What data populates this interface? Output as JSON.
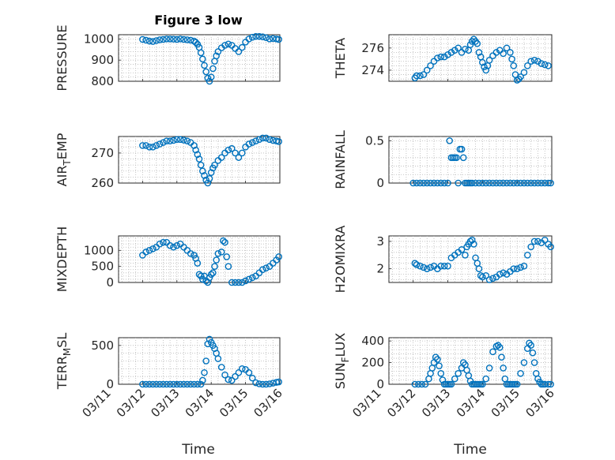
{
  "title": "Figure 3 low",
  "marker_color": "#0072BD",
  "chart_data": [
    {
      "type": "scatter",
      "ylabel": "PRESSURE",
      "ylim": [
        800,
        1020
      ],
      "yticks": [
        800,
        900,
        1000
      ],
      "ytick_labels": [
        "800",
        "900",
        "1000"
      ],
      "xlim": [
        11.3,
        16.0
      ],
      "xticks": [
        11,
        12,
        13,
        14,
        15,
        16
      ],
      "x": [
        12.0,
        12.1,
        12.2,
        12.3,
        12.4,
        12.5,
        12.6,
        12.7,
        12.8,
        12.9,
        13.0,
        13.1,
        13.2,
        13.3,
        13.4,
        13.5,
        13.55,
        13.6,
        13.65,
        13.7,
        13.75,
        13.8,
        13.85,
        13.9,
        13.95,
        14.0,
        14.05,
        14.1,
        14.15,
        14.2,
        14.3,
        14.4,
        14.5,
        14.6,
        14.7,
        14.8,
        14.9,
        15.0,
        15.1,
        15.2,
        15.3,
        15.4,
        15.5,
        15.6,
        15.7,
        15.8,
        15.9,
        15.97
      ],
      "y": [
        998,
        994,
        990,
        988,
        992,
        996,
        998,
        1000,
        1000,
        999,
        998,
        1000,
        998,
        996,
        994,
        990,
        984,
        975,
        960,
        935,
        905,
        875,
        845,
        815,
        800,
        820,
        860,
        895,
        920,
        940,
        958,
        970,
        976,
        970,
        955,
        940,
        960,
        985,
        1000,
        1008,
        1012,
        1012,
        1010,
        1006,
        1000,
        1002,
        1000,
        998
      ]
    },
    {
      "type": "scatter",
      "ylabel": "THETA",
      "ylim": [
        273,
        277.2
      ],
      "yticks": [
        274,
        276
      ],
      "ytick_labels": [
        "274",
        "276"
      ],
      "xlim": [
        11.3,
        16.0
      ],
      "xticks": [
        11,
        12,
        13,
        14,
        15,
        16
      ],
      "x": [
        12.05,
        12.1,
        12.2,
        12.3,
        12.4,
        12.5,
        12.6,
        12.7,
        12.8,
        12.9,
        13.0,
        13.1,
        13.2,
        13.3,
        13.4,
        13.5,
        13.6,
        13.65,
        13.7,
        13.75,
        13.8,
        13.85,
        13.9,
        13.95,
        14.0,
        14.05,
        14.1,
        14.15,
        14.2,
        14.3,
        14.4,
        14.5,
        14.6,
        14.7,
        14.8,
        14.85,
        14.9,
        14.95,
        15.0,
        15.05,
        15.1,
        15.2,
        15.3,
        15.4,
        15.5,
        15.6,
        15.7,
        15.8,
        15.9
      ],
      "y": [
        273.3,
        273.5,
        273.5,
        273.6,
        274.0,
        274.4,
        274.8,
        275.1,
        275.2,
        275.2,
        275.4,
        275.6,
        275.8,
        276.0,
        275.6,
        275.9,
        275.8,
        276.3,
        276.6,
        276.8,
        276.6,
        276.4,
        275.6,
        275.2,
        274.7,
        274.3,
        274.0,
        274.4,
        274.9,
        275.3,
        275.6,
        275.8,
        275.5,
        276.0,
        275.6,
        275.0,
        274.4,
        273.6,
        273.1,
        273.2,
        273.4,
        273.8,
        274.4,
        274.8,
        274.9,
        274.8,
        274.6,
        274.5,
        274.4
      ]
    },
    {
      "type": "scatter",
      "ylabel": "AIR_TEMP",
      "ylim": [
        260,
        275.5
      ],
      "yticks": [
        260,
        270
      ],
      "ytick_labels": [
        "260",
        "270"
      ],
      "xlim": [
        11.3,
        16.0
      ],
      "xticks": [
        11,
        12,
        13,
        14,
        15,
        16
      ],
      "x": [
        12.0,
        12.1,
        12.2,
        12.3,
        12.4,
        12.5,
        12.6,
        12.7,
        12.8,
        12.9,
        13.0,
        13.1,
        13.2,
        13.3,
        13.4,
        13.5,
        13.55,
        13.6,
        13.65,
        13.7,
        13.75,
        13.8,
        13.85,
        13.9,
        13.95,
        14.0,
        14.05,
        14.1,
        14.2,
        14.3,
        14.4,
        14.5,
        14.6,
        14.7,
        14.8,
        14.9,
        15.0,
        15.1,
        15.2,
        15.3,
        15.4,
        15.5,
        15.6,
        15.7,
        15.8,
        15.9,
        15.97
      ],
      "y": [
        272.5,
        272.5,
        272.0,
        272.0,
        272.5,
        273.0,
        273.5,
        274.0,
        274.0,
        274.2,
        274.5,
        274.5,
        274.3,
        274.0,
        273.5,
        272.5,
        271.0,
        269.5,
        268.0,
        266.0,
        264.0,
        262.5,
        261.0,
        260.0,
        261.5,
        263.5,
        265.0,
        266.0,
        267.5,
        268.5,
        270.0,
        271.0,
        271.5,
        270.0,
        268.5,
        270.0,
        272.0,
        273.0,
        273.5,
        274.0,
        274.5,
        275.0,
        275.0,
        274.5,
        274.2,
        274.0,
        273.8
      ]
    },
    {
      "type": "scatter",
      "ylabel": "RAINFALL",
      "ylim": [
        0,
        0.55
      ],
      "yticks": [
        0,
        0.5
      ],
      "ytick_labels": [
        "0",
        "0.5"
      ],
      "xlim": [
        11.3,
        16.0
      ],
      "xticks": [
        11,
        12,
        13,
        14,
        15,
        16
      ],
      "x": [
        12.0,
        12.1,
        12.2,
        12.3,
        12.4,
        12.5,
        12.6,
        12.7,
        12.8,
        12.9,
        13.0,
        13.05,
        13.1,
        13.15,
        13.2,
        13.25,
        13.3,
        13.35,
        13.4,
        13.45,
        13.5,
        13.55,
        13.6,
        13.65,
        13.7,
        13.8,
        13.9,
        14.0,
        14.1,
        14.2,
        14.3,
        14.4,
        14.5,
        14.6,
        14.7,
        14.8,
        14.9,
        15.0,
        15.1,
        15.2,
        15.3,
        15.4,
        15.5,
        15.6,
        15.7,
        15.8,
        15.9,
        15.97
      ],
      "y": [
        0,
        0,
        0,
        0,
        0,
        0,
        0,
        0,
        0,
        0,
        0,
        0.5,
        0.3,
        0.3,
        0.3,
        0.3,
        0,
        0.4,
        0.4,
        0.3,
        0,
        0,
        0,
        0,
        0,
        0,
        0,
        0,
        0,
        0,
        0,
        0,
        0,
        0,
        0,
        0,
        0,
        0,
        0,
        0,
        0,
        0,
        0,
        0,
        0,
        0,
        0,
        0
      ]
    },
    {
      "type": "scatter",
      "ylabel": "MIXDEPTH",
      "ylim": [
        0,
        1450
      ],
      "yticks": [
        0,
        500,
        1000
      ],
      "ytick_labels": [
        "0",
        "500",
        "1000"
      ],
      "xlim": [
        11.3,
        16.0
      ],
      "xticks": [
        11,
        12,
        13,
        14,
        15,
        16
      ],
      "x": [
        12.0,
        12.1,
        12.2,
        12.3,
        12.4,
        12.5,
        12.6,
        12.7,
        12.8,
        12.9,
        13.0,
        13.1,
        13.2,
        13.3,
        13.4,
        13.5,
        13.55,
        13.6,
        13.65,
        13.7,
        13.75,
        13.8,
        13.85,
        13.9,
        13.95,
        14.0,
        14.05,
        14.1,
        14.15,
        14.2,
        14.3,
        14.35,
        14.4,
        14.45,
        14.5,
        14.6,
        14.7,
        14.8,
        14.9,
        15.0,
        15.1,
        15.2,
        15.3,
        15.4,
        15.5,
        15.6,
        15.7,
        15.8,
        15.9,
        15.97
      ],
      "y": [
        850,
        950,
        1000,
        1050,
        1100,
        1200,
        1250,
        1250,
        1150,
        1100,
        1150,
        1200,
        1100,
        1000,
        900,
        850,
        750,
        600,
        250,
        200,
        100,
        200,
        50,
        0,
        150,
        250,
        300,
        500,
        700,
        900,
        950,
        1300,
        1250,
        800,
        500,
        0,
        0,
        0,
        0,
        50,
        100,
        150,
        200,
        300,
        400,
        450,
        500,
        600,
        700,
        800
      ]
    },
    {
      "type": "scatter",
      "ylabel": "H2OMIXRA",
      "ylim": [
        1.5,
        3.2
      ],
      "yticks": [
        2,
        3
      ],
      "ytick_labels": [
        "2",
        "3"
      ],
      "xlim": [
        11.3,
        16.0
      ],
      "xticks": [
        11,
        12,
        13,
        14,
        15,
        16
      ],
      "x": [
        12.05,
        12.1,
        12.2,
        12.3,
        12.4,
        12.5,
        12.6,
        12.7,
        12.8,
        12.9,
        13.0,
        13.1,
        13.2,
        13.3,
        13.4,
        13.5,
        13.55,
        13.6,
        13.65,
        13.7,
        13.75,
        13.8,
        13.85,
        13.9,
        13.95,
        14.0,
        14.1,
        14.2,
        14.3,
        14.4,
        14.5,
        14.6,
        14.7,
        14.8,
        14.9,
        15.0,
        15.1,
        15.2,
        15.3,
        15.4,
        15.5,
        15.6,
        15.7,
        15.8,
        15.9,
        15.97
      ],
      "y": [
        2.2,
        2.15,
        2.1,
        2.05,
        2.0,
        2.05,
        2.1,
        2.0,
        2.1,
        2.1,
        2.1,
        2.4,
        2.5,
        2.6,
        2.7,
        2.5,
        2.8,
        2.9,
        3.0,
        3.05,
        2.9,
        2.4,
        2.2,
        2.0,
        1.75,
        1.7,
        1.75,
        1.6,
        1.65,
        1.7,
        1.8,
        1.85,
        1.8,
        1.9,
        2.0,
        2.0,
        2.05,
        2.1,
        2.5,
        2.8,
        3.0,
        3.0,
        2.95,
        3.05,
        2.9,
        2.8
      ]
    },
    {
      "type": "scatter",
      "ylabel": "TERR_MSL",
      "ylim": [
        0,
        600
      ],
      "yticks": [
        0,
        500
      ],
      "ytick_labels": [
        "0",
        "500"
      ],
      "xlim": [
        11.3,
        16.0
      ],
      "xticks": [
        11,
        12,
        13,
        14,
        15,
        16
      ],
      "x": [
        12.0,
        12.1,
        12.2,
        12.3,
        12.4,
        12.5,
        12.6,
        12.7,
        12.8,
        12.9,
        13.0,
        13.1,
        13.2,
        13.3,
        13.4,
        13.5,
        13.6,
        13.7,
        13.75,
        13.8,
        13.85,
        13.9,
        13.95,
        14.0,
        14.05,
        14.1,
        14.15,
        14.2,
        14.3,
        14.4,
        14.5,
        14.6,
        14.7,
        14.8,
        14.9,
        15.0,
        15.1,
        15.2,
        15.3,
        15.4,
        15.5,
        15.6,
        15.7,
        15.8,
        15.9,
        15.97
      ],
      "y": [
        0,
        0,
        0,
        0,
        0,
        0,
        0,
        0,
        0,
        0,
        0,
        0,
        0,
        0,
        0,
        0,
        0,
        0,
        50,
        150,
        300,
        520,
        580,
        540,
        500,
        460,
        400,
        330,
        220,
        120,
        60,
        50,
        100,
        150,
        200,
        190,
        150,
        80,
        20,
        5,
        0,
        0,
        5,
        15,
        25,
        30
      ]
    },
    {
      "type": "scatter",
      "ylabel": "SUN_FLUX",
      "ylim": [
        0,
        430
      ],
      "yticks": [
        0,
        200,
        400
      ],
      "ytick_labels": [
        "0",
        "200",
        "400"
      ],
      "xlim": [
        11.3,
        16.0
      ],
      "xticks": [
        11,
        12,
        13,
        14,
        15,
        16
      ],
      "x": [
        12.05,
        12.15,
        12.25,
        12.35,
        12.45,
        12.5,
        12.55,
        12.6,
        12.65,
        12.7,
        12.75,
        12.8,
        12.85,
        12.9,
        12.95,
        13.0,
        13.05,
        13.1,
        13.2,
        13.3,
        13.4,
        13.45,
        13.5,
        13.55,
        13.6,
        13.65,
        13.7,
        13.75,
        13.8,
        13.85,
        13.9,
        13.95,
        14.0,
        14.1,
        14.2,
        14.3,
        14.4,
        14.45,
        14.5,
        14.55,
        14.6,
        14.65,
        14.7,
        14.75,
        14.8,
        14.85,
        14.9,
        14.95,
        15.0,
        15.1,
        15.2,
        15.3,
        15.35,
        15.4,
        15.45,
        15.5,
        15.55,
        15.6,
        15.65,
        15.7,
        15.75,
        15.8,
        15.9,
        15.97
      ],
      "y": [
        0,
        0,
        0,
        0,
        50,
        100,
        150,
        200,
        250,
        230,
        170,
        100,
        40,
        0,
        0,
        0,
        0,
        0,
        50,
        100,
        150,
        200,
        180,
        130,
        80,
        30,
        0,
        0,
        0,
        0,
        0,
        0,
        0,
        50,
        150,
        300,
        350,
        360,
        340,
        250,
        150,
        50,
        0,
        0,
        0,
        0,
        0,
        0,
        0,
        100,
        200,
        330,
        380,
        360,
        290,
        200,
        100,
        50,
        20,
        0,
        0,
        0,
        0,
        0
      ]
    }
  ],
  "xtick_labels": [
    "03/11",
    "03/12",
    "03/13",
    "03/14",
    "03/15",
    "03/16"
  ],
  "xlabel_left": "Time",
  "xlabel_right": "Time"
}
